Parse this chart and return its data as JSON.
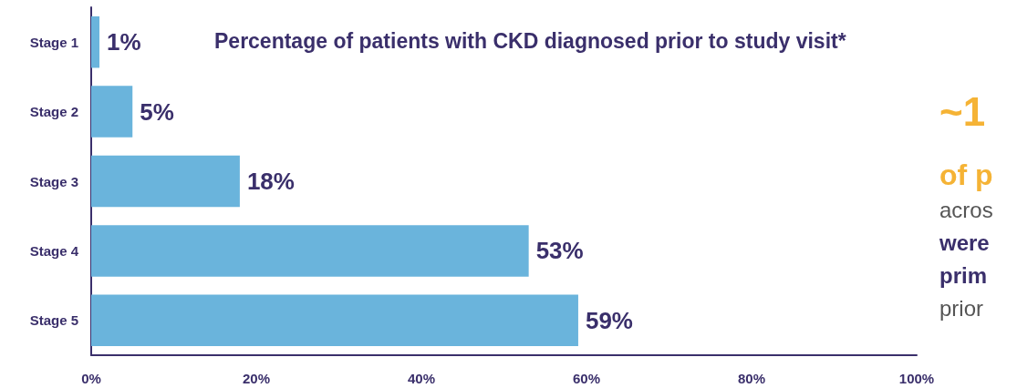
{
  "chart_data": {
    "type": "bar",
    "orientation": "horizontal",
    "title": "Percentage of patients with CKD diagnosed prior to study visit*",
    "categories": [
      "Stage 1",
      "Stage 2",
      "Stage 3",
      "Stage 4",
      "Stage 5"
    ],
    "values": [
      1,
      5,
      18,
      53,
      59
    ],
    "color": "#6ab4dc",
    "value_labels": [
      "1%",
      "5%",
      "18%",
      "53%",
      "59%"
    ],
    "xlim": [
      0,
      100
    ],
    "xticks": [
      {
        "value": 0,
        "label": "0%"
      },
      {
        "value": 20,
        "label": "20%"
      },
      {
        "value": 40,
        "label": "40%"
      },
      {
        "value": 60,
        "label": "60%"
      },
      {
        "value": 80,
        "label": "80%"
      },
      {
        "value": 100,
        "label": "100%"
      }
    ],
    "grid": false,
    "annotations": [
      "~1",
      "of p",
      "acros",
      "were",
      "prim",
      "prior"
    ]
  }
}
